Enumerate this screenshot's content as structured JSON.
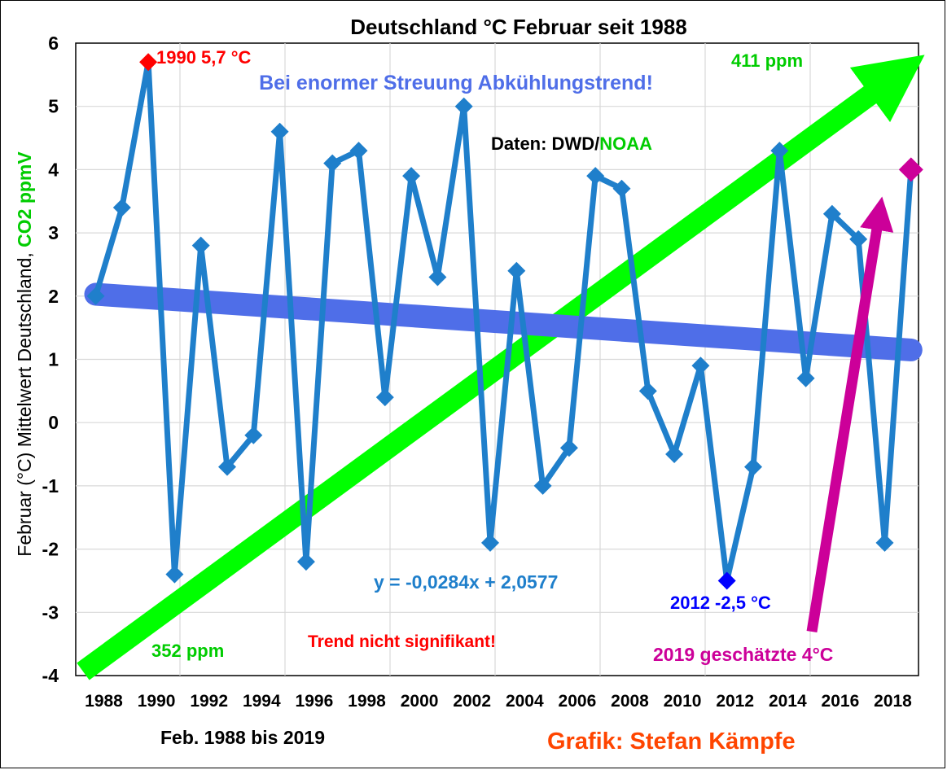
{
  "chart_data": {
    "type": "line",
    "title": "Deutschland °C Februar seit 1988",
    "ylabel_part1": "Februar (°C) Mittelwert Deutschland,",
    "ylabel_part2": "CO2 ppmV",
    "xlabel": "Feb. 1988 bis 2019",
    "ylim": [
      -4,
      6
    ],
    "xlim": [
      1988,
      2019
    ],
    "yticks": [
      6,
      5,
      4,
      3,
      2,
      1,
      0,
      -1,
      -2,
      -3,
      -4
    ],
    "xticks": [
      1988,
      1990,
      1992,
      1994,
      1996,
      1998,
      2000,
      2002,
      2004,
      2006,
      2008,
      2010,
      2012,
      2014,
      2016,
      2018
    ],
    "grid": true,
    "series": [
      {
        "color": "#1f7fcb",
        "x": [
          1988,
          1989,
          1990,
          1991,
          1992,
          1993,
          1994,
          1995,
          1996,
          1997,
          1998,
          1999,
          2000,
          2001,
          2002,
          2003,
          2004,
          2005,
          2006,
          2007,
          2008,
          2009,
          2010,
          2011,
          2012,
          2013,
          2014,
          2015,
          2016,
          2017,
          2018,
          2019
        ],
        "values": [
          2.0,
          3.4,
          5.7,
          -2.4,
          2.8,
          -0.7,
          -0.2,
          4.6,
          -2.2,
          4.1,
          4.3,
          0.4,
          3.9,
          2.3,
          5.0,
          -1.9,
          2.4,
          -1.0,
          -0.4,
          3.9,
          3.7,
          0.5,
          -0.5,
          0.9,
          -2.5,
          -0.7,
          4.3,
          0.7,
          3.3,
          2.9,
          -1.9,
          4.0
        ]
      }
    ],
    "trend": {
      "equation": "y = -0,0284x + 2,0577",
      "slope": -0.0284,
      "intercept": 2.0577,
      "color": "#4f6ee8"
    },
    "co2_arrow": {
      "color": "#00ff00",
      "start_label": "352 ppm",
      "end_label": "411 ppm"
    },
    "highlights": {
      "max": {
        "label": "1990 5,7 °C",
        "year": 1990,
        "value": 5.7,
        "color": "#ff0000"
      },
      "min": {
        "label": "2012 -2,5 °C",
        "year": 2012,
        "value": -2.5,
        "color": "#0000ff"
      },
      "estimate": {
        "label": "2019 geschätzte 4°C",
        "year": 2019,
        "value": 4.0,
        "color": "#cc0099"
      }
    },
    "annotations": {
      "trend_text": "Bei enormer Streuung Abkühlungstrend!",
      "data_source_prefix": "Daten: DWD/",
      "data_source_suffix": "NOAA",
      "not_significant": "Trend nicht signifikant!",
      "credit": "Grafik: Stefan Kämpfe"
    }
  }
}
